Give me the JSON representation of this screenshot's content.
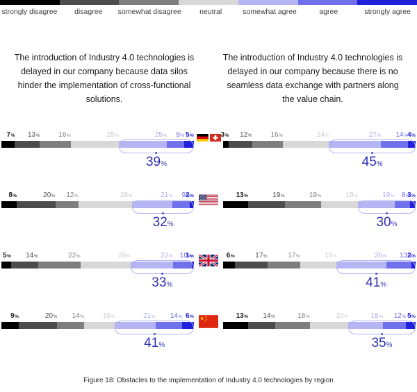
{
  "legend": {
    "labels": [
      "strongly disagree",
      "disagree",
      "somewhat disagree",
      "neutral",
      "somewhat agree",
      "agree",
      "strongly agree"
    ],
    "colors": [
      "#000000",
      "#4c4c4c",
      "#7e7e7e",
      "#d8d8d8",
      "#b5b5f3",
      "#7070ec",
      "#2020dd"
    ],
    "label_text_colors": [
      "#1a1a1a",
      "#4c4c4c",
      "#7e7e7e",
      "#c9c9c9",
      "#aaaaf0",
      "#6a6ae4",
      "#2020dd"
    ]
  },
  "accent_colors": {
    "bracket_outline": "#b2b2f1",
    "total_text": "#3030b2"
  },
  "percent_sign": "%",
  "questions": {
    "left": "The introduction of Industry 4.0 technologies is delayed in our company because data silos hinder the implementation of cross-functional solutions.",
    "right": "The introduction of Industry 4.0 technologies is delayed in our company because there is no seamless data exchange with partners along the value chain."
  },
  "rows": [
    {
      "region": "Germany/Switzerland",
      "flags": [
        "germany",
        "switzerland"
      ],
      "left": {
        "values": [
          7,
          13,
          16,
          25,
          25,
          9,
          5
        ],
        "total": 39
      },
      "right": {
        "values": [
          3,
          12,
          16,
          24,
          27,
          14,
          4
        ],
        "total": 45
      }
    },
    {
      "region": "United States",
      "flags": [
        "usa"
      ],
      "left": {
        "values": [
          8,
          20,
          12,
          28,
          21,
          9,
          2
        ],
        "total": 32
      },
      "right": {
        "values": [
          13,
          19,
          19,
          19,
          19,
          8,
          3
        ],
        "total": 30
      }
    },
    {
      "region": "United Kingdom",
      "flags": [
        "uk"
      ],
      "left": {
        "values": [
          5,
          14,
          22,
          26,
          22,
          10,
          1
        ],
        "total": 33
      },
      "right": {
        "values": [
          6,
          17,
          17,
          19,
          26,
          13,
          2
        ],
        "total": 41
      }
    },
    {
      "region": "China",
      "flags": [
        "china"
      ],
      "left": {
        "values": [
          9,
          20,
          14,
          16,
          21,
          14,
          6
        ],
        "total": 41
      },
      "right": {
        "values": [
          13,
          14,
          18,
          20,
          18,
          12,
          5
        ],
        "total": 35
      }
    }
  ],
  "caption": "Figure 18: Obstacles to the implementation of Industry 4.0 technologies by region",
  "chart_data": [
    {
      "type": "bar",
      "subtype": "horizontal_stacked_likert",
      "title": "The introduction of Industry 4.0 technologies is delayed in our company because data silos hinder the implementation of cross-functional solutions.",
      "categories": [
        "Germany/Switzerland",
        "United States",
        "United Kingdom",
        "China"
      ],
      "series": [
        {
          "name": "strongly disagree",
          "values": [
            7,
            8,
            5,
            9
          ]
        },
        {
          "name": "disagree",
          "values": [
            13,
            20,
            14,
            20
          ]
        },
        {
          "name": "somewhat disagree",
          "values": [
            16,
            12,
            22,
            14
          ]
        },
        {
          "name": "neutral",
          "values": [
            25,
            28,
            26,
            16
          ]
        },
        {
          "name": "somewhat agree",
          "values": [
            25,
            21,
            22,
            21
          ]
        },
        {
          "name": "agree",
          "values": [
            9,
            9,
            10,
            14
          ]
        },
        {
          "name": "strongly agree",
          "values": [
            5,
            2,
            1,
            6
          ]
        }
      ],
      "agree_totals": [
        39,
        32,
        33,
        41
      ],
      "unit": "%",
      "xlim": [
        0,
        100
      ],
      "legend_position": "top"
    },
    {
      "type": "bar",
      "subtype": "horizontal_stacked_likert",
      "title": "The introduction of Industry 4.0 technologies is delayed in our company because there is no seamless data exchange with partners along the value chain.",
      "categories": [
        "Germany/Switzerland",
        "United States",
        "United Kingdom",
        "China"
      ],
      "series": [
        {
          "name": "strongly disagree",
          "values": [
            3,
            13,
            6,
            13
          ]
        },
        {
          "name": "disagree",
          "values": [
            12,
            19,
            17,
            14
          ]
        },
        {
          "name": "somewhat disagree",
          "values": [
            16,
            19,
            17,
            18
          ]
        },
        {
          "name": "neutral",
          "values": [
            24,
            19,
            19,
            20
          ]
        },
        {
          "name": "somewhat agree",
          "values": [
            27,
            19,
            26,
            18
          ]
        },
        {
          "name": "agree",
          "values": [
            14,
            8,
            13,
            12
          ]
        },
        {
          "name": "strongly agree",
          "values": [
            4,
            3,
            2,
            5
          ]
        }
      ],
      "agree_totals": [
        45,
        30,
        41,
        35
      ],
      "unit": "%",
      "xlim": [
        0,
        100
      ],
      "legend_position": "top"
    }
  ]
}
